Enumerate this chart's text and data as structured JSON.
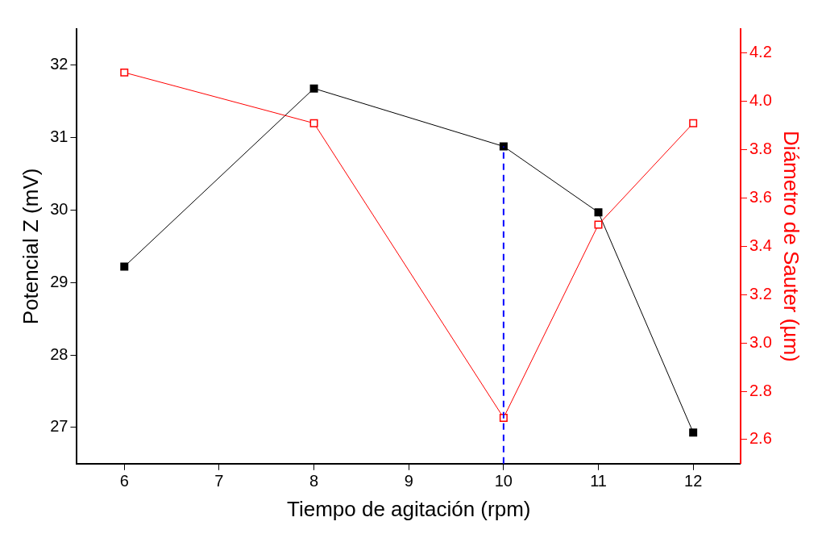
{
  "chart_data": {
    "type": "line",
    "xlabel": "Tiempo de agitación (rpm)",
    "ylabel": "Potencial Z (mV)",
    "y2label": "Diámetro de Sauter (µm)",
    "x": [
      6,
      8,
      10,
      11,
      12
    ],
    "series": [
      {
        "color": "#000000",
        "values": [
          29.22,
          31.68,
          30.88,
          29.97,
          26.93
        ]
      },
      {
        "color": "#ff0000",
        "values": [
          4.12,
          3.91,
          2.69,
          3.49,
          3.91
        ],
        "axis": "y2"
      }
    ],
    "xlim": [
      5.5,
      12.5
    ],
    "xticks": [
      6,
      7,
      8,
      9,
      10,
      11,
      12
    ],
    "ylim": [
      26.5,
      32.5
    ],
    "yticks": [
      27,
      28,
      29,
      30,
      31,
      32
    ],
    "y2lim": [
      2.5,
      4.3
    ],
    "y2ticks": [
      2.6,
      2.8,
      {
        "value": 3,
        "label": "3.0"
      },
      3.2,
      3.4,
      3.6,
      3.8,
      {
        "value": 4,
        "label": "4.0"
      },
      4.2
    ],
    "ref_lines": [
      {
        "axis": "x",
        "value": 10,
        "color": "#0000ff",
        "line_style": "dashed"
      }
    ],
    "grid": false,
    "legend": false,
    "marker": "square",
    "line_style": "solid"
  }
}
